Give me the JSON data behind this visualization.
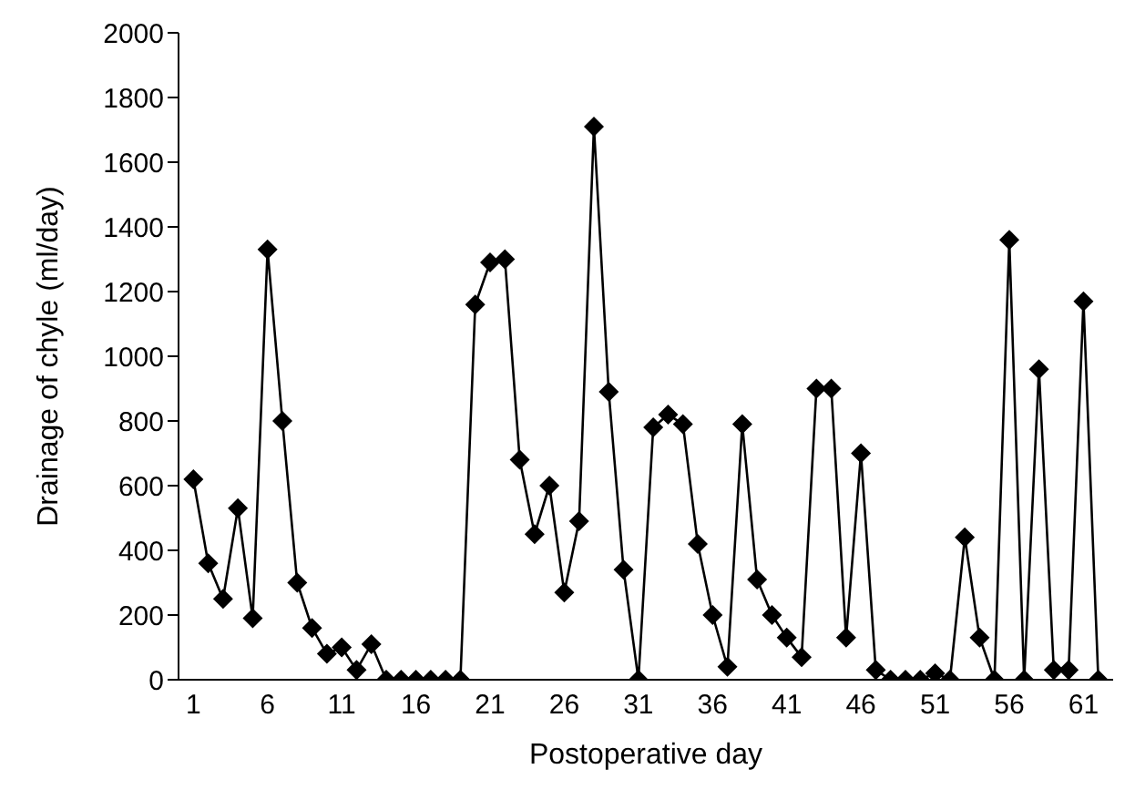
{
  "chart_data": {
    "type": "line",
    "xlabel": "Postoperative day",
    "ylabel": "Drainage of chyle (ml/day)",
    "x": [
      1,
      2,
      3,
      4,
      5,
      6,
      7,
      8,
      9,
      10,
      11,
      12,
      13,
      14,
      15,
      16,
      17,
      18,
      19,
      20,
      21,
      22,
      23,
      24,
      25,
      26,
      27,
      28,
      29,
      30,
      31,
      32,
      33,
      34,
      35,
      36,
      37,
      38,
      39,
      40,
      41,
      42,
      43,
      44,
      45,
      46,
      47,
      48,
      49,
      50,
      51,
      52,
      53,
      54,
      55,
      56,
      57,
      58,
      59,
      60,
      61,
      62
    ],
    "series": [
      {
        "color": "#000000",
        "values": [
          620,
          360,
          250,
          530,
          190,
          1330,
          800,
          300,
          160,
          80,
          100,
          30,
          110,
          0,
          0,
          0,
          0,
          0,
          0,
          1160,
          1290,
          1300,
          680,
          450,
          600,
          270,
          490,
          1710,
          890,
          340,
          0,
          780,
          820,
          790,
          420,
          200,
          40,
          790,
          310,
          200,
          130,
          70,
          900,
          900,
          130,
          700,
          30,
          0,
          0,
          0,
          20,
          0,
          440,
          130,
          0,
          1360,
          0,
          960,
          30,
          30,
          1170,
          0
        ]
      }
    ],
    "xlim": [
      0,
      63
    ],
    "xticks": [
      1,
      6,
      11,
      16,
      21,
      26,
      31,
      36,
      41,
      46,
      51,
      56,
      61
    ],
    "ylim": [
      0,
      2000
    ],
    "yticks": [
      0,
      200,
      400,
      600,
      800,
      1000,
      1200,
      1400,
      1600,
      1800,
      2000
    ],
    "grid": false,
    "legend": false,
    "marker": "diamond",
    "line_style": "solid"
  }
}
